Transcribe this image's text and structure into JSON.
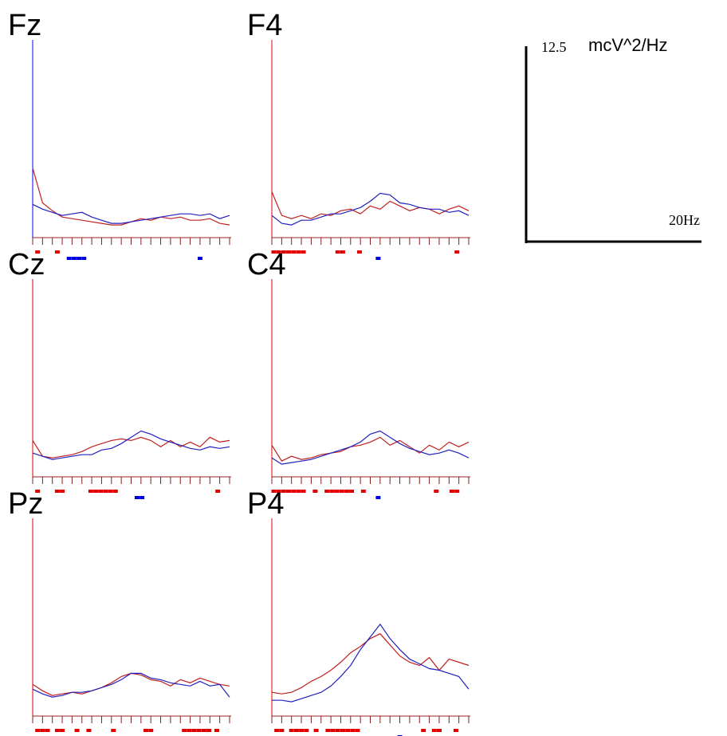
{
  "scale_bar": {
    "y_value": "12.5",
    "unit": "mcV^2/Hz",
    "x_value": "20Hz"
  },
  "chart_data": [
    {
      "type": "line",
      "title": "Fz",
      "axis_color": "#0000ff",
      "xlim": [
        0,
        20
      ],
      "ylim": [
        0,
        12.5
      ],
      "xticks": [
        0,
        1,
        2,
        3,
        4,
        5,
        6,
        7,
        8,
        9,
        10,
        11,
        12,
        13,
        14,
        15,
        16,
        17,
        18,
        19,
        20
      ],
      "x": [
        0,
        1,
        2,
        3,
        4,
        5,
        6,
        7,
        8,
        9,
        10,
        11,
        12,
        13,
        14,
        15,
        16,
        17,
        18,
        19,
        20
      ],
      "series": [
        {
          "color": "#c02020",
          "values": [
            4.4,
            2.2,
            1.7,
            1.3,
            1.2,
            1.1,
            1.0,
            0.9,
            0.8,
            0.8,
            1.0,
            1.2,
            1.1,
            1.3,
            1.2,
            1.3,
            1.1,
            1.1,
            1.2,
            0.9,
            0.8
          ]
        },
        {
          "color": "#2020c0",
          "values": [
            2.1,
            1.8,
            1.6,
            1.4,
            1.5,
            1.6,
            1.3,
            1.1,
            0.9,
            0.9,
            1.0,
            1.1,
            1.2,
            1.3,
            1.4,
            1.5,
            1.5,
            1.4,
            1.5,
            1.2,
            1.4
          ]
        }
      ],
      "markers": [
        {
          "color": "#e00000",
          "x": [
            0.3,
            2.3
          ]
        },
        {
          "color": "#0000e0",
          "x": [
            3.5,
            4.0,
            4.5,
            5.0,
            16.8
          ]
        }
      ]
    },
    {
      "type": "line",
      "title": "F4",
      "axis_color": "#e00000",
      "xlim": [
        0,
        20
      ],
      "ylim": [
        0,
        12.5
      ],
      "xticks": [
        0,
        1,
        2,
        3,
        4,
        5,
        6,
        7,
        8,
        9,
        10,
        11,
        12,
        13,
        14,
        15,
        16,
        17,
        18,
        19,
        20
      ],
      "x": [
        0,
        1,
        2,
        3,
        4,
        5,
        6,
        7,
        8,
        9,
        10,
        11,
        12,
        13,
        14,
        15,
        16,
        17,
        18,
        19,
        20
      ],
      "series": [
        {
          "color": "#c02020",
          "values": [
            2.9,
            1.4,
            1.2,
            1.4,
            1.2,
            1.5,
            1.4,
            1.7,
            1.8,
            1.5,
            2.0,
            1.8,
            2.3,
            2.0,
            1.7,
            1.9,
            1.8,
            1.5,
            1.8,
            2.0,
            1.7
          ]
        },
        {
          "color": "#2020c0",
          "values": [
            1.4,
            0.9,
            0.8,
            1.1,
            1.1,
            1.3,
            1.5,
            1.5,
            1.7,
            1.9,
            2.3,
            2.8,
            2.7,
            2.2,
            2.1,
            1.9,
            1.8,
            1.8,
            1.6,
            1.7,
            1.4
          ]
        }
      ],
      "markers": [
        {
          "color": "#e00000",
          "x": [
            0,
            0.5,
            1,
            1.5,
            2,
            2.5,
            3,
            6.5,
            7,
            8.7,
            18.6
          ]
        },
        {
          "color": "#0000e0",
          "x": [
            10.6
          ]
        }
      ]
    },
    {
      "type": "line",
      "title": "Cz",
      "axis_color": "#e00000",
      "xlim": [
        0,
        20
      ],
      "ylim": [
        0,
        12.5
      ],
      "xticks": [
        0,
        1,
        2,
        3,
        4,
        5,
        6,
        7,
        8,
        9,
        10,
        11,
        12,
        13,
        14,
        15,
        16,
        17,
        18,
        19,
        20
      ],
      "x": [
        0,
        1,
        2,
        3,
        4,
        5,
        6,
        7,
        8,
        9,
        10,
        11,
        12,
        13,
        14,
        15,
        16,
        17,
        18,
        19,
        20
      ],
      "series": [
        {
          "color": "#c02020",
          "values": [
            2.3,
            1.3,
            1.2,
            1.3,
            1.4,
            1.6,
            1.9,
            2.1,
            2.3,
            2.4,
            2.3,
            2.5,
            2.3,
            1.9,
            2.3,
            1.9,
            2.2,
            1.9,
            2.5,
            2.2,
            2.3
          ]
        },
        {
          "color": "#2020c0",
          "values": [
            1.5,
            1.3,
            1.1,
            1.2,
            1.3,
            1.4,
            1.4,
            1.7,
            1.8,
            2.1,
            2.5,
            2.9,
            2.7,
            2.4,
            2.2,
            2.0,
            1.8,
            1.7,
            1.9,
            1.8,
            1.9
          ]
        }
      ],
      "markers": [
        {
          "color": "#e00000",
          "x": [
            0.3,
            2.3,
            2.8,
            5.7,
            6.2,
            6.7,
            7.2,
            7.7,
            8.2,
            18.6
          ]
        },
        {
          "color": "#0000e0",
          "x": [
            10.4,
            10.9
          ]
        }
      ]
    },
    {
      "type": "line",
      "title": "C4",
      "axis_color": "#e00000",
      "xlim": [
        0,
        20
      ],
      "ylim": [
        0,
        12.5
      ],
      "xticks": [
        0,
        1,
        2,
        3,
        4,
        5,
        6,
        7,
        8,
        9,
        10,
        11,
        12,
        13,
        14,
        15,
        16,
        17,
        18,
        19,
        20
      ],
      "x": [
        0,
        1,
        2,
        3,
        4,
        5,
        6,
        7,
        8,
        9,
        10,
        11,
        12,
        13,
        14,
        15,
        16,
        17,
        18,
        19,
        20
      ],
      "series": [
        {
          "color": "#c02020",
          "values": [
            2.0,
            1.0,
            1.3,
            1.1,
            1.2,
            1.4,
            1.5,
            1.6,
            1.9,
            2.0,
            2.2,
            2.5,
            2.0,
            2.3,
            1.9,
            1.5,
            2.0,
            1.7,
            2.2,
            1.9,
            2.2
          ]
        },
        {
          "color": "#2020c0",
          "values": [
            1.2,
            0.8,
            0.9,
            1.0,
            1.1,
            1.3,
            1.5,
            1.7,
            1.9,
            2.2,
            2.7,
            2.9,
            2.5,
            2.1,
            1.8,
            1.6,
            1.4,
            1.5,
            1.7,
            1.5,
            1.2
          ]
        }
      ],
      "markers": [
        {
          "color": "#e00000",
          "x": [
            0,
            0.5,
            1,
            1.5,
            2,
            2.5,
            3,
            4.2,
            5.4,
            5.9,
            6.4,
            6.9,
            7.4,
            7.9,
            9.1,
            16.5,
            18.1,
            18.6
          ]
        },
        {
          "color": "#0000e0",
          "x": [
            10.6
          ]
        }
      ]
    },
    {
      "type": "line",
      "title": "Pz",
      "axis_color": "#e00000",
      "xlim": [
        0,
        20
      ],
      "ylim": [
        0,
        12.5
      ],
      "xticks": [
        0,
        1,
        2,
        3,
        4,
        5,
        6,
        7,
        8,
        9,
        10,
        11,
        12,
        13,
        14,
        15,
        16,
        17,
        18,
        19,
        20
      ],
      "x": [
        0,
        1,
        2,
        3,
        4,
        5,
        6,
        7,
        8,
        9,
        10,
        11,
        12,
        13,
        14,
        15,
        16,
        17,
        18,
        19,
        20
      ],
      "series": [
        {
          "color": "#c02020",
          "values": [
            2.0,
            1.6,
            1.3,
            1.4,
            1.5,
            1.4,
            1.6,
            1.8,
            2.1,
            2.5,
            2.7,
            2.6,
            2.3,
            2.2,
            1.9,
            2.3,
            2.1,
            2.4,
            2.2,
            2.0,
            1.9
          ]
        },
        {
          "color": "#2020c0",
          "values": [
            1.7,
            1.4,
            1.2,
            1.3,
            1.5,
            1.5,
            1.6,
            1.8,
            2.0,
            2.3,
            2.7,
            2.7,
            2.4,
            2.3,
            2.1,
            2.0,
            1.9,
            2.2,
            1.9,
            2.0,
            1.2
          ]
        }
      ],
      "markers": [
        {
          "color": "#e00000",
          "x": [
            0.3,
            0.8,
            1.3,
            2.3,
            2.8,
            4.3,
            5.5,
            8,
            11.3,
            11.8,
            15.2,
            15.7,
            16.2,
            16.7,
            17.2,
            17.7,
            18.5
          ]
        }
      ]
    },
    {
      "type": "line",
      "title": "P4",
      "axis_color": "#e00000",
      "xlim": [
        0,
        20
      ],
      "ylim": [
        0,
        12.5
      ],
      "xticks": [
        0,
        1,
        2,
        3,
        4,
        5,
        6,
        7,
        8,
        9,
        10,
        11,
        12,
        13,
        14,
        15,
        16,
        17,
        18,
        19,
        20
      ],
      "x": [
        0,
        1,
        2,
        3,
        4,
        5,
        6,
        7,
        8,
        9,
        10,
        11,
        12,
        13,
        14,
        15,
        16,
        17,
        18,
        19,
        20
      ],
      "series": [
        {
          "color": "#c02020",
          "values": [
            1.5,
            1.4,
            1.5,
            1.8,
            2.2,
            2.5,
            2.9,
            3.4,
            4.0,
            4.4,
            4.9,
            5.2,
            4.5,
            3.8,
            3.4,
            3.2,
            3.7,
            2.9,
            3.6,
            3.4,
            3.2
          ]
        },
        {
          "color": "#2020c0",
          "values": [
            1.0,
            1.0,
            0.9,
            1.1,
            1.3,
            1.5,
            1.9,
            2.5,
            3.2,
            4.2,
            5.0,
            5.8,
            4.9,
            4.2,
            3.6,
            3.3,
            3.0,
            2.9,
            2.7,
            2.5,
            1.7
          ]
        }
      ],
      "markers": [
        {
          "color": "#e00000",
          "x": [
            0.3,
            0.8,
            1.8,
            2.3,
            2.8,
            3.3,
            4.3,
            5.5,
            6,
            6.5,
            7,
            7.5,
            8,
            8.5,
            15.2,
            16.3,
            16.8,
            18.5
          ]
        },
        {
          "color": "#0000e0",
          "x": [
            12.8
          ]
        }
      ]
    }
  ]
}
